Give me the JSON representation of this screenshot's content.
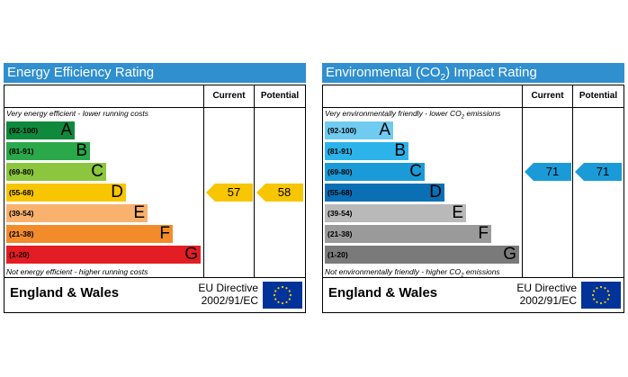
{
  "energy_rating": {
    "title": "Energy Efficiency Rating",
    "col_current": "Current",
    "col_potential": "Potential",
    "top_note": "Very energy efficient - lower running costs",
    "bottom_note": "Not energy efficient - higher running costs",
    "region": "England & Wales",
    "directive_line1": "EU Directive",
    "directive_line2": "2002/91/EC",
    "bands": [
      {
        "range": "(92-100)",
        "letter": "A",
        "color": "#0f8a3c"
      },
      {
        "range": "(81-91)",
        "letter": "B",
        "color": "#2aa84a"
      },
      {
        "range": "(69-80)",
        "letter": "C",
        "color": "#8cc63f"
      },
      {
        "range": "(55-68)",
        "letter": "D",
        "color": "#f7c600"
      },
      {
        "range": "(39-54)",
        "letter": "E",
        "color": "#f9b16e"
      },
      {
        "range": "(21-38)",
        "letter": "F",
        "color": "#f28c2a"
      },
      {
        "range": "(1-20)",
        "letter": "G",
        "color": "#e31d23"
      }
    ],
    "current": {
      "value": "57",
      "band": "D",
      "color": "#f7c600"
    },
    "potential": {
      "value": "58",
      "band": "D",
      "color": "#f7c600"
    }
  },
  "environmental_rating": {
    "title_prefix": "Environmental (CO",
    "title_sub": "2",
    "title_suffix": ") Impact Rating",
    "col_current": "Current",
    "col_potential": "Potential",
    "top_note_prefix": "Very environmentally friendly - lower CO",
    "top_note_sub": "2",
    "top_note_suffix": " emissions",
    "bottom_note_prefix": "Not environmentally friendly - higher CO",
    "bottom_note_sub": "2",
    "bottom_note_suffix": " emissions",
    "region": "England & Wales",
    "directive_line1": "EU Directive",
    "directive_line2": "2002/91/EC",
    "bands": [
      {
        "range": "(92-100)",
        "letter": "A",
        "color": "#6fcbf0"
      },
      {
        "range": "(81-91)",
        "letter": "B",
        "color": "#2bb3ea"
      },
      {
        "range": "(69-80)",
        "letter": "C",
        "color": "#1a9bd7"
      },
      {
        "range": "(55-68)",
        "letter": "D",
        "color": "#0a6fb5"
      },
      {
        "range": "(39-54)",
        "letter": "E",
        "color": "#b9b9b9"
      },
      {
        "range": "(21-38)",
        "letter": "F",
        "color": "#9a9a9a"
      },
      {
        "range": "(1-20)",
        "letter": "G",
        "color": "#7a7a7a"
      }
    ],
    "current": {
      "value": "71",
      "band": "C",
      "color": "#1a9bd7"
    },
    "potential": {
      "value": "71",
      "band": "C",
      "color": "#1a9bd7"
    }
  },
  "chart_data": [
    {
      "type": "bar",
      "title": "Energy Efficiency Rating",
      "categories": [
        "A",
        "B",
        "C",
        "D",
        "E",
        "F",
        "G"
      ],
      "ranges": [
        "(92-100)",
        "(81-91)",
        "(69-80)",
        "(55-68)",
        "(39-54)",
        "(21-38)",
        "(1-20)"
      ],
      "current": 57,
      "potential": 58
    },
    {
      "type": "bar",
      "title": "Environmental (CO2) Impact Rating",
      "categories": [
        "A",
        "B",
        "C",
        "D",
        "E",
        "F",
        "G"
      ],
      "ranges": [
        "(92-100)",
        "(81-91)",
        "(69-80)",
        "(55-68)",
        "(39-54)",
        "(21-38)",
        "(1-20)"
      ],
      "current": 71,
      "potential": 71
    }
  ]
}
